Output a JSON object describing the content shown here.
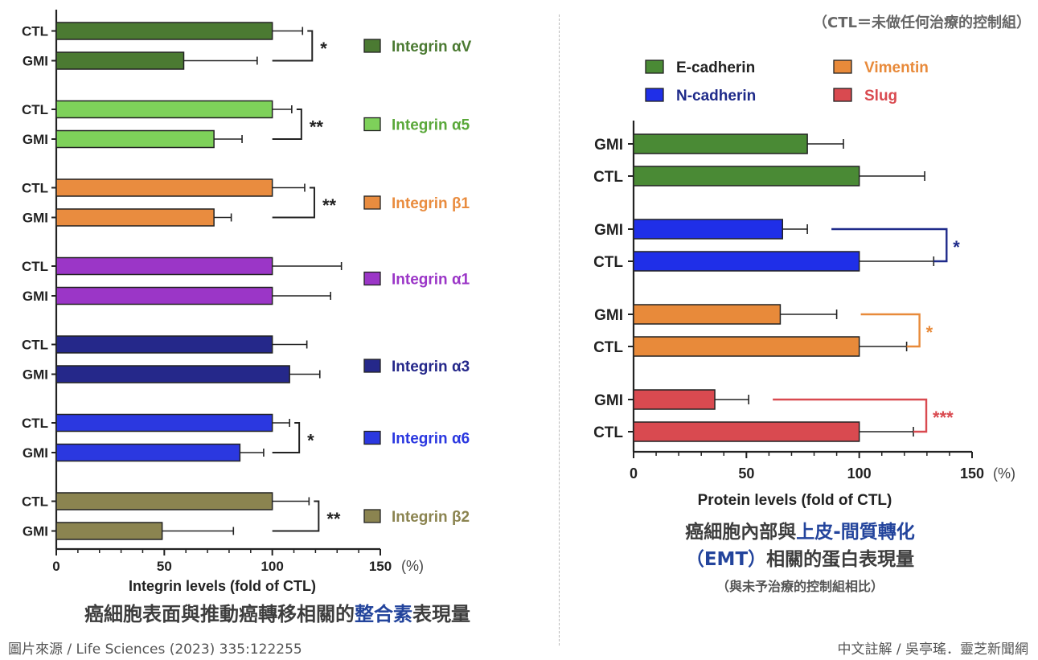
{
  "header_note": "（CTL＝未做任何治療的控制組）",
  "footer": {
    "source": "圖片來源 / Life Sciences (2023) 335:122255",
    "credit": "中文註解 / 吳亭瑤．靈芝新聞網"
  },
  "captions": {
    "left_pre": "癌細胞表面與推動癌轉移相關的",
    "left_hl": "整合素",
    "left_post": "表現量",
    "right_pre": "癌細胞內部與",
    "right_hl": "上皮-間質轉化",
    "right_hl2": "（EMT）",
    "right_line2": "相關的蛋白表現量",
    "right_sub": "（與未予治療的控制組相比）"
  },
  "colors": {
    "alphaV": "#4b7a32",
    "alpha5": "#7ed15a",
    "beta1": "#e98c3f",
    "alpha1": "#9b36c7",
    "alpha3": "#25288a",
    "alpha6": "#2b38e0",
    "beta2": "#8b8450",
    "ecad": "#4a8a35",
    "ncad": "#1f2fe8",
    "vim": "#e88a3a",
    "slug": "#d94a50"
  },
  "chart_data": [
    {
      "type": "bar",
      "orientation": "horizontal",
      "xlabel": "Integrin levels (fold of CTL)",
      "unit": "(%)",
      "xlim": [
        0,
        150
      ],
      "ticks": [
        "0",
        "50",
        "100",
        "150"
      ],
      "groups": [
        {
          "name": "Integrin αV",
          "color": "#4b7a32",
          "labels": [
            "CTL",
            "GMI"
          ],
          "values": [
            100,
            59
          ],
          "errors": [
            14,
            34
          ],
          "sig": "*"
        },
        {
          "name": "Integrin α5",
          "color": "#7ed15a",
          "labels": [
            "CTL",
            "GMI"
          ],
          "values": [
            100,
            73
          ],
          "errors": [
            9,
            13
          ],
          "sig": "**"
        },
        {
          "name": "Integrin β1",
          "color": "#e98c3f",
          "labels": [
            "CTL",
            "GMI"
          ],
          "values": [
            100,
            73
          ],
          "errors": [
            15,
            8
          ],
          "sig": "**"
        },
        {
          "name": "Integrin α1",
          "color": "#9b36c7",
          "labels": [
            "CTL",
            "GMI"
          ],
          "values": [
            100,
            100
          ],
          "errors": [
            32,
            27
          ],
          "sig": ""
        },
        {
          "name": "Integrin α3",
          "color": "#25288a",
          "labels": [
            "CTL",
            "GMI"
          ],
          "values": [
            100,
            108
          ],
          "errors": [
            16,
            14
          ],
          "sig": ""
        },
        {
          "name": "Integrin α6",
          "color": "#2b38e0",
          "labels": [
            "CTL",
            "GMI"
          ],
          "values": [
            100,
            85
          ],
          "errors": [
            8,
            11
          ],
          "sig": "*"
        },
        {
          "name": "Integrin β2",
          "color": "#8b8450",
          "labels": [
            "CTL",
            "GMI"
          ],
          "values": [
            100,
            49
          ],
          "errors": [
            17,
            33
          ],
          "sig": "**"
        }
      ]
    },
    {
      "type": "bar",
      "orientation": "horizontal",
      "xlabel": "Protein levels (fold of CTL)",
      "unit": "(%)",
      "xlim": [
        0,
        150
      ],
      "ticks": [
        "0",
        "50",
        "100",
        "150"
      ],
      "legend": [
        {
          "name": "E-cadherin",
          "color": "#4a8a35"
        },
        {
          "name": "Vimentin",
          "color": "#e88a3a"
        },
        {
          "name": "N-cadherin",
          "color": "#1f2fe8"
        },
        {
          "name": "Slug",
          "color": "#d94a50"
        }
      ],
      "groups": [
        {
          "name": "E-cadherin",
          "color": "#4a8a35",
          "labels": [
            "GMI",
            "CTL"
          ],
          "values": [
            77,
            100
          ],
          "errors": [
            16,
            29
          ],
          "sig": ""
        },
        {
          "name": "N-cadherin",
          "color": "#1f2fe8",
          "labels": [
            "GMI",
            "CTL"
          ],
          "values": [
            66,
            100
          ],
          "errors": [
            11,
            33
          ],
          "sig": "*"
        },
        {
          "name": "Vimentin",
          "color": "#e88a3a",
          "labels": [
            "GMI",
            "CTL"
          ],
          "values": [
            65,
            100
          ],
          "errors": [
            25,
            21
          ],
          "sig": "*"
        },
        {
          "name": "Slug",
          "color": "#d94a50",
          "labels": [
            "GMI",
            "CTL"
          ],
          "values": [
            36,
            100
          ],
          "errors": [
            15,
            24
          ],
          "sig": "***"
        }
      ]
    }
  ]
}
